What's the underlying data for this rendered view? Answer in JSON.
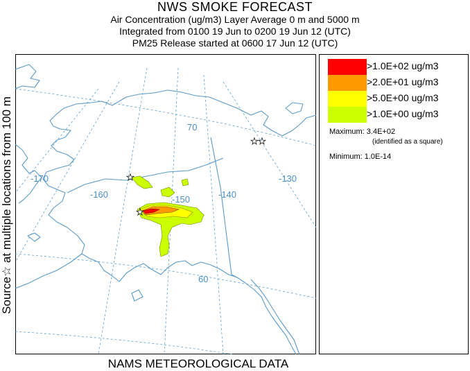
{
  "header": {
    "title": "NWS SMOKE FORECAST",
    "line1": "Air Concentration (ug/m3) Layer Average    0 m and  5000 m",
    "line2": "Integrated from 0100 19 Jun to 0200 19 Jun 12 (UTC)",
    "line3": "PM25 Release started at 0600 17 Jun 12 (UTC)"
  },
  "side_label": "Source☆ at multiple locations  from  100 m",
  "bottom_label": "NAMS METEOROLOGICAL DATA",
  "map": {
    "longitude_labels": [
      "-170",
      "-160",
      "-150",
      "-140",
      "-130"
    ],
    "latitude_labels": [
      "70",
      "60"
    ],
    "colors": {
      "graticule": "#5aa0d0",
      "coast": "#5a9ac8",
      "border": "#5a9ac8"
    }
  },
  "legend": {
    "items": [
      {
        "label": ">1.0E+02 ug/m3",
        "color": "#ff0000"
      },
      {
        "label": ">2.0E+01 ug/m3",
        "color": "#ff9900"
      },
      {
        "label": ">5.0E+00 ug/m3",
        "color": "#ffff00"
      },
      {
        "label": ">1.0E+00 ug/m3",
        "color": "#ccff00"
      }
    ],
    "maximum_label": "Maximum: 3.4E+02",
    "maximum_note": "(identified as a square)",
    "minimum_label": "Minimum: 1.0E-14"
  }
}
